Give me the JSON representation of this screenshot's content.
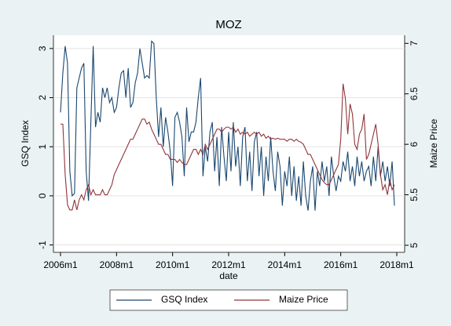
{
  "chart_data": {
    "type": "line",
    "title": "MOZ",
    "x_label": "date",
    "y_label": "GSQ Index",
    "y2_label": "Maize Price",
    "x": [
      "2006m1",
      "2006m2",
      "2006m3",
      "2006m4",
      "2006m5",
      "2006m6",
      "2006m7",
      "2006m8",
      "2006m9",
      "2006m10",
      "2006m11",
      "2006m12",
      "2007m1",
      "2007m2",
      "2007m3",
      "2007m4",
      "2007m5",
      "2007m6",
      "2007m7",
      "2007m8",
      "2007m9",
      "2007m10",
      "2007m11",
      "2007m12",
      "2008m1",
      "2008m2",
      "2008m3",
      "2008m4",
      "2008m5",
      "2008m6",
      "2008m7",
      "2008m8",
      "2008m9",
      "2008m10",
      "2008m11",
      "2008m12",
      "2009m1",
      "2009m2",
      "2009m3",
      "2009m4",
      "2009m5",
      "2009m6",
      "2009m7",
      "2009m8",
      "2009m9",
      "2009m10",
      "2009m11",
      "2009m12",
      "2010m1",
      "2010m2",
      "2010m3",
      "2010m4",
      "2010m5",
      "2010m6",
      "2010m7",
      "2010m8",
      "2010m9",
      "2010m10",
      "2010m11",
      "2010m12",
      "2011m1",
      "2011m2",
      "2011m3",
      "2011m4",
      "2011m5",
      "2011m6",
      "2011m7",
      "2011m8",
      "2011m9",
      "2011m10",
      "2011m11",
      "2011m12",
      "2012m1",
      "2012m2",
      "2012m3",
      "2012m4",
      "2012m5",
      "2012m6",
      "2012m7",
      "2012m8",
      "2012m9",
      "2012m10",
      "2012m11",
      "2012m12",
      "2013m1",
      "2013m2",
      "2013m3",
      "2013m4",
      "2013m5",
      "2013m6",
      "2013m7",
      "2013m8",
      "2013m9",
      "2013m10",
      "2013m11",
      "2013m12",
      "2014m1",
      "2014m2",
      "2014m3",
      "2014m4",
      "2014m5",
      "2014m6",
      "2014m7",
      "2014m8",
      "2014m9",
      "2014m10",
      "2014m11",
      "2014m12",
      "2015m1",
      "2015m2",
      "2015m3",
      "2015m4",
      "2015m5",
      "2015m6",
      "2015m7",
      "2015m8",
      "2015m9",
      "2015m10",
      "2015m11",
      "2015m12",
      "2016m1",
      "2016m2",
      "2016m3",
      "2016m4",
      "2016m5",
      "2016m6",
      "2016m7",
      "2016m8",
      "2016m9",
      "2016m10",
      "2016m11",
      "2016m12",
      "2017m1",
      "2017m2",
      "2017m3",
      "2017m4",
      "2017m5",
      "2017m6",
      "2017m7",
      "2017m8",
      "2017m9",
      "2017m10",
      "2017m11",
      "2017m12"
    ],
    "series": [
      {
        "name": "GSQ Index",
        "color": "#1a476f",
        "values": [
          1.7,
          2.5,
          3.05,
          2.7,
          0.5,
          0.0,
          0.05,
          2.2,
          2.4,
          2.6,
          2.7,
          0.5,
          -0.1,
          1.5,
          3.05,
          1.4,
          1.7,
          1.5,
          2.2,
          2.0,
          2.2,
          1.9,
          2.0,
          1.7,
          1.8,
          2.2,
          2.5,
          2.55,
          2.0,
          2.6,
          1.8,
          1.9,
          2.3,
          2.5,
          3.0,
          2.7,
          2.4,
          2.45,
          2.4,
          3.15,
          3.1,
          2.0,
          1.2,
          1.8,
          1.0,
          1.6,
          1.3,
          0.9,
          0.2,
          1.6,
          1.7,
          1.5,
          1.2,
          0.4,
          1.8,
          1.1,
          1.3,
          1.3,
          1.5,
          2.0,
          2.4,
          0.4,
          1.0,
          0.7,
          1.3,
          1.5,
          0.5,
          1.2,
          0.2,
          1.4,
          0.8,
          0.3,
          1.3,
          0.5,
          1.5,
          0.6,
          1.0,
          0.2,
          1.2,
          1.4,
          0.3,
          0.9,
          0.1,
          1.1,
          1.3,
          0.4,
          1.0,
          0.0,
          0.8,
          0.3,
          1.2,
          0.5,
          0.1,
          0.9,
          0.6,
          -0.2,
          0.5,
          0.2,
          0.8,
          0.0,
          0.6,
          -0.1,
          0.4,
          -0.2,
          0.7,
          0.0,
          -0.3,
          0.3,
          0.6,
          -0.3,
          0.5,
          0.2,
          0.7,
          0.3,
          0.6,
          0.0,
          0.8,
          0.4,
          0.1,
          0.4,
          0.3,
          0.7,
          0.5,
          0.9,
          0.3,
          0.6,
          0.2,
          0.8,
          0.4,
          0.7,
          0.3,
          0.5,
          0.6,
          0.2,
          0.8,
          0.3,
          1.0,
          0.4,
          0.7,
          0.3,
          0.6,
          0.2,
          0.7,
          -0.2
        ]
      },
      {
        "name": "Maize Price",
        "color": "#90353b",
        "axis": "y2",
        "values": [
          6.2,
          6.2,
          5.7,
          5.4,
          5.35,
          5.35,
          5.45,
          5.35,
          5.45,
          5.5,
          5.45,
          5.55,
          5.6,
          5.5,
          5.55,
          5.5,
          5.5,
          5.5,
          5.55,
          5.5,
          5.5,
          5.55,
          5.6,
          5.7,
          5.75,
          5.8,
          5.85,
          5.9,
          5.95,
          6.0,
          6.05,
          6.05,
          6.1,
          6.15,
          6.2,
          6.25,
          6.25,
          6.2,
          6.22,
          6.15,
          6.1,
          6.05,
          6.0,
          6.0,
          5.95,
          5.9,
          5.9,
          5.85,
          5.85,
          5.85,
          5.82,
          5.85,
          5.82,
          5.8,
          5.8,
          5.85,
          5.9,
          5.95,
          5.95,
          5.9,
          5.95,
          5.9,
          6.0,
          5.95,
          6.0,
          6.05,
          6.1,
          6.15,
          6.15,
          6.12,
          6.15,
          6.17,
          6.17,
          6.15,
          6.17,
          6.12,
          6.15,
          6.1,
          6.12,
          6.1,
          6.12,
          6.08,
          6.1,
          6.12,
          6.1,
          6.12,
          6.08,
          6.1,
          6.06,
          6.08,
          6.05,
          6.06,
          6.05,
          6.06,
          6.05,
          6.05,
          6.05,
          6.03,
          6.05,
          6.05,
          6.03,
          6.05,
          6.03,
          6.02,
          6.0,
          5.95,
          5.9,
          5.9,
          5.85,
          5.8,
          5.75,
          5.7,
          5.65,
          5.62,
          5.6,
          5.6,
          5.65,
          5.7,
          5.75,
          5.8,
          6.05,
          6.6,
          6.45,
          6.1,
          6.4,
          6.3,
          6.0,
          5.95,
          6.1,
          6.15,
          6.3,
          5.85,
          5.9,
          6.0,
          6.1,
          6.2,
          6.0,
          5.7,
          5.55,
          5.6,
          5.5,
          5.65,
          5.55,
          5.6
        ]
      }
    ],
    "xticks": [
      "2006m1",
      "2008m1",
      "2010m1",
      "2012m1",
      "2014m1",
      "2016m1",
      "2018m1"
    ],
    "ylim": [
      -1.15,
      3.27
    ],
    "yticks": [
      -1,
      0,
      1,
      2,
      3
    ],
    "y2lim": [
      4.93,
      7.08
    ],
    "y2ticks": [
      5,
      5.5,
      6,
      6.5,
      7
    ],
    "grid": true,
    "legend": "bottom"
  }
}
